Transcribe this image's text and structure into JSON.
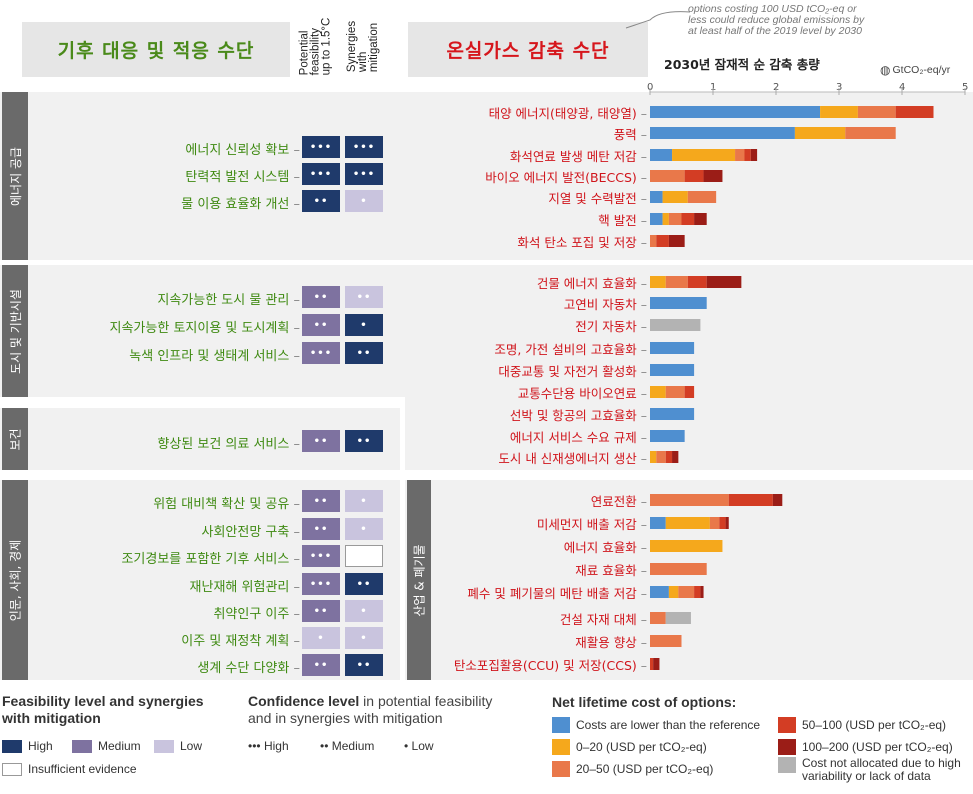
{
  "header": {
    "adaptation_title": "기후 대응 및 적응 수단",
    "mitigation_title": "온실가스 감축 수단",
    "col_feasibility": "Potential\nfeasibility\nup to 1.5°C",
    "col_synergies": "Synergies\nwith\nmitigation",
    "chart_title": "2030년 잠재적 순 감축 총량",
    "unit": "GtCO₂-eq/yr",
    "annotation": "options costing 100 USD tCO₂-eq or\nless could reduce global emissions by\nat least half of the 2019 level by 2030"
  },
  "colors": {
    "high": "#1f3a6b",
    "medium": "#7e72a0",
    "low": "#c9c4de",
    "cost_lower": "#4f8fd0",
    "cost_0_20": "#f5a81c",
    "cost_20_50": "#e9784a",
    "cost_50_100": "#d33d24",
    "cost_100_200": "#9b1d17",
    "cost_na": "#b3b3b3",
    "adaptation_text": "#3f8a12",
    "mitigation_text": "#d0141b"
  },
  "sections_left": [
    {
      "label": "에너지 공급",
      "rows": [
        {
          "name": "에너지 신뢰성 확보",
          "feas": "high",
          "feas_dots": "•••",
          "syn": "high",
          "syn_dots": "•••"
        },
        {
          "name": "탄력적 발전 시스템",
          "feas": "high",
          "feas_dots": "•••",
          "syn": "high",
          "syn_dots": "•••"
        },
        {
          "name": "물 이용 효율화 개선",
          "feas": "high",
          "feas_dots": "••",
          "syn": "low",
          "syn_dots": "•"
        }
      ]
    },
    {
      "label": "도시 및 기반시설",
      "rows": [
        {
          "name": "지속가능한 도시 물 관리",
          "feas": "medium",
          "feas_dots": "••",
          "syn": "low",
          "syn_dots": "••"
        },
        {
          "name": "지속가능한 토지이용 및 도시계획",
          "feas": "medium",
          "feas_dots": "••",
          "syn": "high",
          "syn_dots": "•"
        },
        {
          "name": "녹색 인프라 및 생태계 서비스",
          "feas": "medium",
          "feas_dots": "•••",
          "syn": "high",
          "syn_dots": "••"
        }
      ]
    },
    {
      "label": "보건",
      "rows": [
        {
          "name": "향상된 보건 의료 서비스",
          "feas": "medium",
          "feas_dots": "••",
          "syn": "high",
          "syn_dots": "••"
        }
      ]
    },
    {
      "label": "인문, 사회, 경제",
      "rows": [
        {
          "name": "위험 대비책 확산 및 공유",
          "feas": "medium",
          "feas_dots": "••",
          "syn": "low",
          "syn_dots": "•"
        },
        {
          "name": "사회안전망 구축",
          "feas": "medium",
          "feas_dots": "••",
          "syn": "low",
          "syn_dots": "•"
        },
        {
          "name": "조기경보를 포함한 기후 서비스",
          "feas": "medium",
          "feas_dots": "•••",
          "syn": "none",
          "syn_dots": ""
        },
        {
          "name": "재난재해 위험관리",
          "feas": "medium",
          "feas_dots": "•••",
          "syn": "high",
          "syn_dots": "••"
        },
        {
          "name": "취약인구 이주",
          "feas": "medium",
          "feas_dots": "••",
          "syn": "low",
          "syn_dots": "•"
        },
        {
          "name": "이주 및 재정착 계획",
          "feas": "low",
          "feas_dots": "•",
          "syn": "low",
          "syn_dots": "•"
        },
        {
          "name": "생계 수단 다양화",
          "feas": "medium",
          "feas_dots": "••",
          "syn": "high",
          "syn_dots": "••"
        }
      ]
    }
  ],
  "sections_right": [
    {
      "label": "",
      "start": 0,
      "end": 6
    },
    {
      "label": "",
      "start": 7,
      "end": 15
    },
    {
      "label": "산업 & 폐기물",
      "start": 16,
      "end": 23
    }
  ],
  "chart_data": {
    "type": "bar",
    "orientation": "horizontal",
    "stacked": true,
    "title": "2030년 잠재적 순 감축 총량",
    "xlabel": "GtCO₂-eq/yr",
    "xlim": [
      0,
      5
    ],
    "xticks": [
      "0",
      "1",
      "2",
      "3",
      "4",
      "5"
    ],
    "segment_keys": [
      "lower",
      "0_20",
      "20_50",
      "50_100",
      "100_200",
      "na"
    ],
    "bars": [
      {
        "label": "태양 에너지(태양광, 태양열)",
        "lower": 2.7,
        "0_20": 0.6,
        "20_50": 0.6,
        "50_100": 0.6,
        "100_200": 0,
        "na": 0
      },
      {
        "label": "풍력",
        "lower": 2.3,
        "0_20": 0.8,
        "20_50": 0.8,
        "50_100": 0,
        "100_200": 0,
        "na": 0
      },
      {
        "label": "화석연료 발생 메탄 저감",
        "lower": 0.35,
        "0_20": 1.0,
        "20_50": 0.15,
        "50_100": 0.1,
        "100_200": 0.1,
        "na": 0
      },
      {
        "label": "바이오 에너지 발전(BECCS)",
        "lower": 0,
        "0_20": 0,
        "20_50": 0.55,
        "50_100": 0.3,
        "100_200": 0.3,
        "na": 0
      },
      {
        "label": "지열 및 수력발전",
        "lower": 0.2,
        "0_20": 0.4,
        "20_50": 0.45,
        "50_100": 0,
        "100_200": 0,
        "na": 0
      },
      {
        "label": "핵 발전",
        "lower": 0.2,
        "0_20": 0.1,
        "20_50": 0.2,
        "50_100": 0.2,
        "100_200": 0.2,
        "na": 0
      },
      {
        "label": "화석 탄소 포집 및 저장",
        "lower": 0,
        "0_20": 0,
        "20_50": 0.1,
        "50_100": 0.2,
        "100_200": 0.25,
        "na": 0
      },
      {
        "label": "건물 에너지 효율화",
        "lower": 0,
        "0_20": 0.25,
        "20_50": 0.35,
        "50_100": 0.3,
        "100_200": 0.55,
        "na": 0
      },
      {
        "label": "고연비 자동차",
        "lower": 0.9,
        "0_20": 0,
        "20_50": 0,
        "50_100": 0,
        "100_200": 0,
        "na": 0
      },
      {
        "label": "전기 자동차",
        "lower": 0,
        "0_20": 0,
        "20_50": 0,
        "50_100": 0,
        "100_200": 0,
        "na": 0.8
      },
      {
        "label": "조명, 가전 설비의 고효율화",
        "lower": 0.7,
        "0_20": 0,
        "20_50": 0,
        "50_100": 0,
        "100_200": 0,
        "na": 0
      },
      {
        "label": "대중교통 및 자전거 활성화",
        "lower": 0.7,
        "0_20": 0,
        "20_50": 0,
        "50_100": 0,
        "100_200": 0,
        "na": 0
      },
      {
        "label": "교통수단용 바이오연료",
        "lower": 0,
        "0_20": 0.25,
        "20_50": 0.3,
        "50_100": 0.15,
        "100_200": 0,
        "na": 0
      },
      {
        "label": "선박 및 항공의 고효율화",
        "lower": 0.7,
        "0_20": 0,
        "20_50": 0,
        "50_100": 0,
        "100_200": 0,
        "na": 0
      },
      {
        "label": "에너지 서비스 수요 규제",
        "lower": 0.55,
        "0_20": 0,
        "20_50": 0,
        "50_100": 0,
        "100_200": 0,
        "na": 0
      },
      {
        "label": "도시 내 신재생에너지 생산",
        "lower": 0,
        "0_20": 0.1,
        "20_50": 0.15,
        "50_100": 0.1,
        "100_200": 0.1,
        "na": 0
      },
      {
        "label": "연료전환",
        "lower": 0,
        "0_20": 0,
        "20_50": 1.25,
        "50_100": 0.7,
        "100_200": 0.15,
        "na": 0
      },
      {
        "label": "미세먼지 배출 저감",
        "lower": 0.25,
        "0_20": 0.7,
        "20_50": 0.15,
        "50_100": 0.1,
        "100_200": 0.05,
        "na": 0
      },
      {
        "label": "에너지 효율화",
        "lower": 0,
        "0_20": 1.15,
        "20_50": 0,
        "50_100": 0,
        "100_200": 0,
        "na": 0
      },
      {
        "label": "재료 효율화",
        "lower": 0,
        "0_20": 0,
        "20_50": 0.9,
        "50_100": 0,
        "100_200": 0,
        "na": 0
      },
      {
        "label": "폐수 및 폐기물의 메탄 배출 저감",
        "lower": 0.3,
        "0_20": 0.15,
        "20_50": 0.25,
        "50_100": 0.1,
        "100_200": 0.05,
        "na": 0
      },
      {
        "label": "건설 자재 대체",
        "lower": 0,
        "0_20": 0,
        "20_50": 0.25,
        "50_100": 0,
        "100_200": 0,
        "na": 0.4
      },
      {
        "label": "재활용 향상",
        "lower": 0,
        "0_20": 0,
        "20_50": 0.5,
        "50_100": 0,
        "100_200": 0,
        "na": 0
      },
      {
        "label": "탄소포집활용(CCU) 및 저장(CCS)",
        "lower": 0,
        "0_20": 0,
        "20_50": 0,
        "50_100": 0.05,
        "100_200": 0.1,
        "na": 0
      }
    ]
  },
  "legend": {
    "feasibility_title_bold": "Feasibility level and synergies",
    "feasibility_title_bold2": "with mitigation",
    "high": "High",
    "medium": "Medium",
    "low": "Low",
    "insufficient": "Insufficient evidence",
    "confidence_title_bold": "Confidence level",
    "confidence_title_rest": " in potential feasibility",
    "confidence_title_rest2": "and in synergies with mitigation",
    "conf_high": "••• High",
    "conf_medium": "•• Medium",
    "conf_low": "• Low",
    "cost_title": "Net lifetime cost of options:",
    "cost_lower": "Costs are lower than the reference",
    "cost_0_20": "0–20 (USD per tCO₂-eq)",
    "cost_20_50": "20–50 (USD per tCO₂-eq)",
    "cost_50_100": "50–100 (USD per tCO₂-eq)",
    "cost_100_200": "100–200 (USD per tCO₂-eq)",
    "cost_na": "Cost not allocated due to high",
    "cost_na2": "variability or lack of data"
  }
}
